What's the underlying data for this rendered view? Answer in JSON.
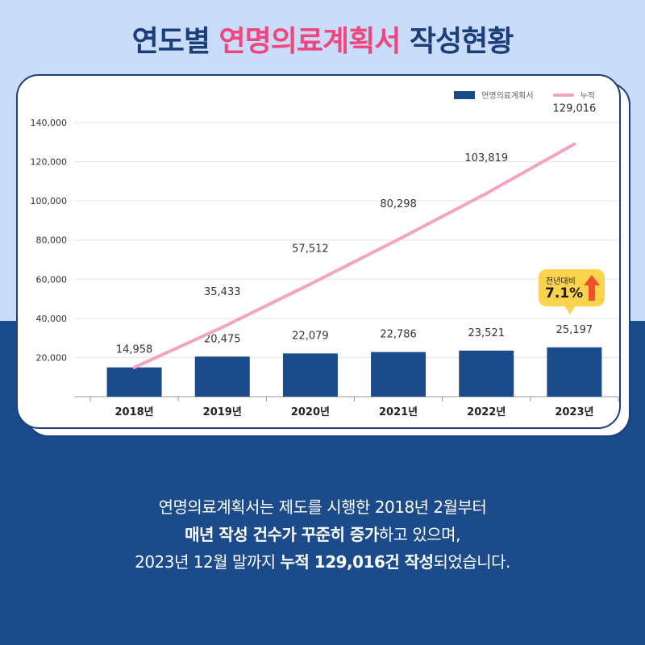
{
  "header": {
    "title_pre": "연도별",
    "title_accent": "연명의료계획서",
    "title_post": "작성현황"
  },
  "legend": {
    "bar_label": "연명의료계획서",
    "line_label": "누적"
  },
  "badge": {
    "label": "전년대비",
    "value": "7.1%"
  },
  "description": {
    "line1": "연명의료계획서는 제도를 시행한 2018년 2월부터",
    "line2_bold": "매년 작성 건수가 꾸준히 증가",
    "line2_rest": "하고 있으며,",
    "line3_pre": "2023년 12월 말까지 ",
    "line3_bold": "누적 129,016건 작성",
    "line3_post": "되었습니다."
  },
  "colors": {
    "bar": "#1b4b8a",
    "line": "#f6a3c3",
    "accent": "#f2467e",
    "badge": "#fcd34d",
    "arrow": "#f0502e"
  },
  "chart_data": {
    "type": "bar",
    "categories": [
      "2018년",
      "2019년",
      "2020년",
      "2021년",
      "2022년",
      "2023년"
    ],
    "series": [
      {
        "name": "연명의료계획서",
        "type": "bar",
        "values": [
          14958,
          20475,
          22079,
          22786,
          23521,
          25197
        ]
      },
      {
        "name": "누적",
        "type": "line",
        "values": [
          14958,
          35433,
          57512,
          80298,
          103819,
          129016
        ]
      }
    ],
    "bar_labels": [
      "14,958",
      "20,475",
      "22,079",
      "22,786",
      "23,521",
      "25,197"
    ],
    "line_labels": [
      "35,433",
      "57,512",
      "80,298",
      "103,819",
      "129,016"
    ],
    "yticks": [
      "20,000",
      "40,000",
      "60,000",
      "80,000",
      "100,000",
      "120,000",
      "140,000"
    ],
    "ylim": [
      0,
      140000
    ],
    "legend_position": "top-right",
    "grid": true
  }
}
